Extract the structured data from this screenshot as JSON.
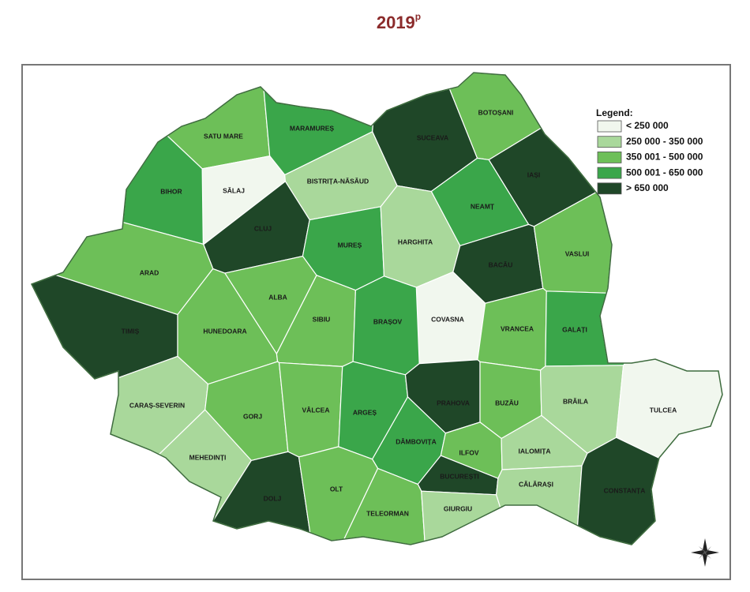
{
  "title": {
    "text": "2019",
    "superscript": "p"
  },
  "legend": {
    "title": "Legend:",
    "items": [
      {
        "label": "< 250 000",
        "color": "#f1f7ee"
      },
      {
        "label": "250 000 - 350 000",
        "color": "#a9d89b"
      },
      {
        "label": "350 001 - 500 000",
        "color": "#6dbf58"
      },
      {
        "label": "500 001 - 650 000",
        "color": "#3aa64a"
      },
      {
        "label": "> 650 000",
        "color": "#1f4728"
      }
    ]
  },
  "counties": [
    {
      "label": "SATU MARE",
      "color": "#6dbf58"
    },
    {
      "label": "MARAMUREȘ",
      "color": "#3aa64a"
    },
    {
      "label": "SUCEAVA",
      "color": "#1f4728"
    },
    {
      "label": "BOTOȘANI",
      "color": "#6dbf58"
    },
    {
      "label": "SĂLAJ",
      "color": "#f1f7ee"
    },
    {
      "label": "BISTRIȚA-NĂSĂUD",
      "color": "#a9d89b"
    },
    {
      "label": "IAȘI",
      "color": "#1f4728"
    },
    {
      "label": "BIHOR",
      "color": "#3aa64a"
    },
    {
      "label": "CLUJ",
      "color": "#1f4728"
    },
    {
      "label": "NEAMȚ",
      "color": "#3aa64a"
    },
    {
      "label": "MUREȘ",
      "color": "#3aa64a"
    },
    {
      "label": "HARGHITA",
      "color": "#a9d89b"
    },
    {
      "label": "BACĂU",
      "color": "#1f4728"
    },
    {
      "label": "VASLUI",
      "color": "#6dbf58"
    },
    {
      "label": "ARAD",
      "color": "#6dbf58"
    },
    {
      "label": "ALBA",
      "color": "#6dbf58"
    },
    {
      "label": "COVASNA",
      "color": "#f1f7ee"
    },
    {
      "label": "TIMIȘ",
      "color": "#1f4728"
    },
    {
      "label": "HUNEDOARA",
      "color": "#6dbf58"
    },
    {
      "label": "SIBIU",
      "color": "#6dbf58"
    },
    {
      "label": "BRAȘOV",
      "color": "#3aa64a"
    },
    {
      "label": "VRANCEA",
      "color": "#6dbf58"
    },
    {
      "label": "GALAȚI",
      "color": "#3aa64a"
    },
    {
      "label": "CARAȘ-SEVERIN",
      "color": "#a9d89b"
    },
    {
      "label": "GORJ",
      "color": "#6dbf58"
    },
    {
      "label": "VÂLCEA",
      "color": "#6dbf58"
    },
    {
      "label": "ARGEȘ",
      "color": "#3aa64a"
    },
    {
      "label": "PRAHOVA",
      "color": "#1f4728"
    },
    {
      "label": "BUZĂU",
      "color": "#6dbf58"
    },
    {
      "label": "BRĂILA",
      "color": "#a9d89b"
    },
    {
      "label": "TULCEA",
      "color": "#f1f7ee"
    },
    {
      "label": "MEHEDINȚI",
      "color": "#a9d89b"
    },
    {
      "label": "DÂMBOVIȚA",
      "color": "#3aa64a"
    },
    {
      "label": "ILFOV",
      "color": "#6dbf58"
    },
    {
      "label": "IALOMIȚA",
      "color": "#a9d89b"
    },
    {
      "label": "BUCUREȘTI",
      "color": "#1f4728"
    },
    {
      "label": "DOLJ",
      "color": "#1f4728"
    },
    {
      "label": "OLT",
      "color": "#6dbf58"
    },
    {
      "label": "TELEORMAN",
      "color": "#6dbf58"
    },
    {
      "label": "GIURGIU",
      "color": "#a9d89b"
    },
    {
      "label": "CĂLĂRAȘI",
      "color": "#a9d89b"
    },
    {
      "label": "CONSTANȚA",
      "color": "#1f4728"
    }
  ]
}
